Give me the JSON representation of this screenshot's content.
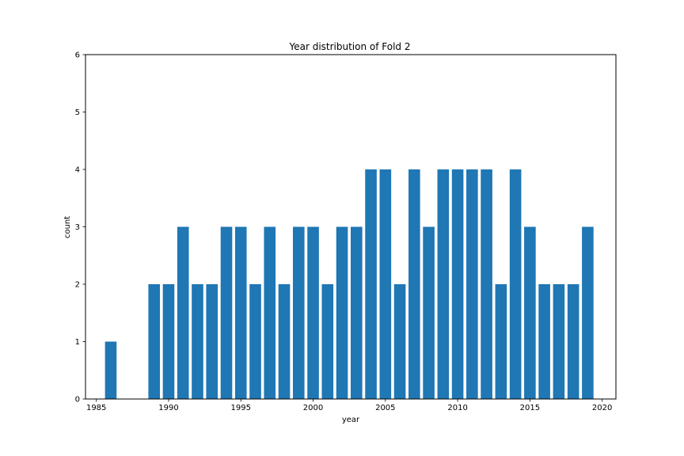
{
  "chart_data": {
    "type": "bar",
    "title": "Year distribution of Fold 2",
    "xlabel": "year",
    "ylabel": "count",
    "x": [
      1986,
      1989,
      1990,
      1991,
      1992,
      1993,
      1994,
      1995,
      1996,
      1997,
      1998,
      1999,
      2000,
      2001,
      2002,
      2003,
      2004,
      2005,
      2006,
      2007,
      2008,
      2009,
      2010,
      2011,
      2012,
      2013,
      2014,
      2015,
      2016,
      2017,
      2018,
      2019
    ],
    "values": [
      1,
      2,
      2,
      3,
      2,
      2,
      3,
      3,
      2,
      3,
      2,
      3,
      3,
      2,
      3,
      3,
      4,
      4,
      2,
      4,
      3,
      4,
      4,
      4,
      4,
      2,
      4,
      3,
      2,
      2,
      2,
      3
    ],
    "xlim": [
      1984.25,
      2020.95
    ],
    "ylim": [
      0,
      6
    ],
    "xticks": [
      1985,
      1990,
      1995,
      2000,
      2005,
      2010,
      2015,
      2020
    ],
    "yticks": [
      0,
      1,
      2,
      3,
      4,
      5,
      6
    ],
    "bar_color": "#1f77b4",
    "grid": false,
    "legend": "none"
  }
}
